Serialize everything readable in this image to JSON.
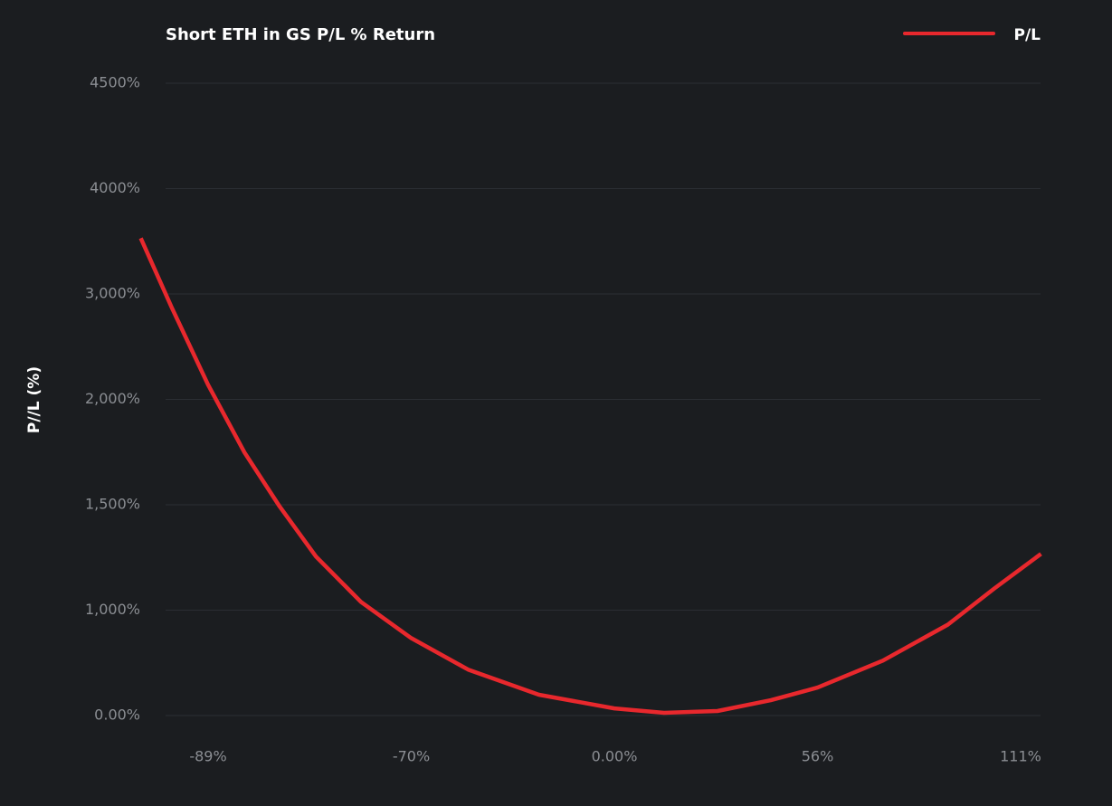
{
  "chart_data": {
    "type": "line",
    "title": "Short ETH in GS P/L % Return",
    "ylabel": "P//L (%)",
    "x": [
      -95.3,
      -92.4,
      -89,
      -85.6,
      -82.3,
      -78.9,
      -74.7,
      -70,
      -50.4,
      -26,
      0,
      13.7,
      28.4,
      43.1,
      56,
      73.7,
      91.3,
      103.9,
      116.5
    ],
    "series": [
      {
        "name": "P/L",
        "color": "#e8282d",
        "values": [
          3530,
          2871,
          2138,
          1748,
          1491,
          1254,
          1039,
          735,
          436,
          197,
          68,
          26,
          43,
          145,
          265,
          521,
          863,
          1103,
          1267
        ]
      }
    ],
    "xlim": [
      -95.3,
      116.5
    ],
    "xticks": [
      {
        "value": -89,
        "label": "-89%"
      },
      {
        "value": -70,
        "label": "-70%"
      },
      {
        "value": 0,
        "label": "0.00%"
      },
      {
        "value": 56,
        "label": "56%"
      },
      {
        "value": 111,
        "label": "111%"
      }
    ],
    "ylim": [
      0,
      4500
    ],
    "yticks": [
      {
        "value": 0,
        "label": "0.00%"
      },
      {
        "value": 1000,
        "label": "1,000%"
      },
      {
        "value": 1500,
        "label": "1,500%"
      },
      {
        "value": 2000,
        "label": "2,000%"
      },
      {
        "value": 3000,
        "label": "3,000%"
      },
      {
        "value": 4000,
        "label": "4000%"
      },
      {
        "value": 4500,
        "label": "4500%"
      }
    ],
    "grid": true,
    "legend": "top-right"
  }
}
